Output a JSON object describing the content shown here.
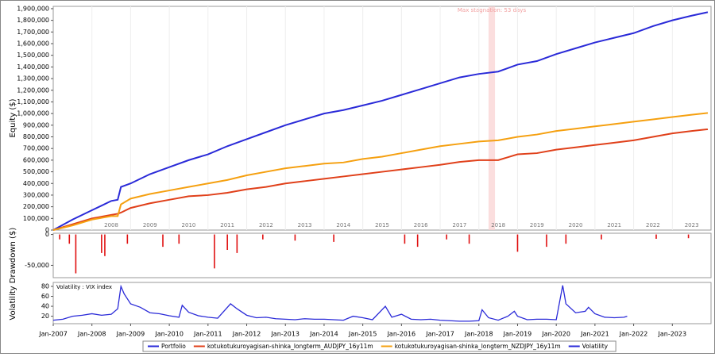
{
  "chart_data": [
    {
      "type": "line",
      "ylabel": "Equity ($)",
      "x": [
        "Jan-2007",
        "Jul-2007",
        "Jan-2008",
        "Jul-2008",
        "Sep-2008",
        "Oct-2008",
        "Jan-2009",
        "Jul-2009",
        "Jan-2010",
        "Jul-2010",
        "Jan-2011",
        "Jul-2011",
        "Jan-2012",
        "Jul-2012",
        "Jan-2013",
        "Jul-2013",
        "Jan-2014",
        "Jul-2014",
        "Jan-2015",
        "Jul-2015",
        "Jan-2016",
        "Jul-2016",
        "Jan-2017",
        "Jul-2017",
        "Jan-2018",
        "Jul-2018",
        "Jan-2019",
        "Jul-2019",
        "Jan-2020",
        "Jul-2020",
        "Jan-2021",
        "Jul-2021",
        "Jan-2022",
        "Jul-2022",
        "Jan-2023",
        "Jul-2023",
        "Dec-2023"
      ],
      "series": [
        {
          "name": "Portfolio",
          "color": "#2a2ad8",
          "values": [
            0,
            90000,
            170000,
            250000,
            260000,
            370000,
            400000,
            480000,
            540000,
            600000,
            650000,
            720000,
            780000,
            840000,
            900000,
            950000,
            1000000,
            1030000,
            1070000,
            1110000,
            1160000,
            1210000,
            1260000,
            1310000,
            1340000,
            1360000,
            1420000,
            1450000,
            1510000,
            1560000,
            1610000,
            1650000,
            1690000,
            1750000,
            1800000,
            1840000,
            1870000
          ]
        },
        {
          "name": "kotukotukuroyagisan-shinka_longterm_AUDJPY_16y11m",
          "color": "#e0401a",
          "values": [
            0,
            50000,
            100000,
            130000,
            140000,
            150000,
            190000,
            230000,
            260000,
            290000,
            300000,
            320000,
            350000,
            370000,
            400000,
            420000,
            440000,
            460000,
            480000,
            500000,
            520000,
            540000,
            560000,
            585000,
            600000,
            600000,
            650000,
            660000,
            690000,
            710000,
            730000,
            750000,
            770000,
            800000,
            830000,
            850000,
            865000
          ]
        },
        {
          "name": "kotukotukuroyagisan-shinka_longterm_NZDJPY_16y11m",
          "color": "#f5a010",
          "values": [
            0,
            40000,
            90000,
            120000,
            120000,
            220000,
            270000,
            310000,
            340000,
            370000,
            400000,
            430000,
            470000,
            500000,
            530000,
            550000,
            570000,
            580000,
            610000,
            630000,
            660000,
            690000,
            720000,
            740000,
            760000,
            770000,
            800000,
            820000,
            850000,
            870000,
            890000,
            910000,
            930000,
            950000,
            970000,
            990000,
            1005000
          ]
        }
      ],
      "xlim": [
        "Jan-2007",
        "Jan-2024"
      ],
      "ylim": [
        0,
        1920000
      ],
      "yticks": [
        0,
        {
          "value": 100000,
          "label": "100,000"
        },
        {
          "value": 200000,
          "label": "200,000"
        },
        {
          "value": 300000,
          "label": "300,000"
        },
        {
          "value": 400000,
          "label": "400,000"
        },
        {
          "value": 500000,
          "label": "500,000"
        },
        {
          "value": 600000,
          "label": "600,000"
        },
        {
          "value": 700000,
          "label": "700,000"
        },
        {
          "value": 800000,
          "label": "800,000"
        },
        {
          "value": 900000,
          "label": "900,000"
        },
        {
          "value": 1000000,
          "label": "1,000,000"
        },
        {
          "value": 1100000,
          "label": "1,100,000"
        },
        {
          "value": 1200000,
          "label": "1,200,000"
        },
        {
          "value": 1300000,
          "label": "1,300,000"
        },
        {
          "value": 1400000,
          "label": "1,400,000"
        },
        {
          "value": 1500000,
          "label": "1,500,000"
        },
        {
          "value": 1600000,
          "label": "1,600,000"
        },
        {
          "value": 1700000,
          "label": "1,700,000"
        },
        {
          "value": 1800000,
          "label": "1,800,000"
        },
        {
          "value": 1900000,
          "label": "1,900,000"
        }
      ],
      "year_labels": [
        "2008",
        "2009",
        "2010",
        "2011",
        "2012",
        "2013",
        "2014",
        "2015",
        "2016",
        "2017",
        "2018",
        "2019",
        "2020",
        "2021",
        "2022",
        "2023"
      ],
      "stagnation": {
        "label": "Max stagnation: 53 days",
        "start": "Apr-2018",
        "end": "Jun-2018"
      }
    },
    {
      "type": "bar",
      "ylabel": "Drawdown ($)",
      "color": "#e01010",
      "x": [
        "Mar-2007",
        "Jun-2007",
        "Aug-2007",
        "Apr-2008",
        "May-2008",
        "Dec-2008",
        "Nov-2009",
        "Apr-2010",
        "Mar-2011",
        "Jul-2011",
        "Oct-2011",
        "Jun-2012",
        "Apr-2013",
        "Apr-2014",
        "Feb-2016",
        "Jun-2016",
        "Mar-2017",
        "Oct-2017",
        "Jan-2019",
        "Oct-2019",
        "Apr-2020",
        "Mar-2021",
        "Aug-2022",
        "Jun-2023"
      ],
      "values": [
        -8000,
        -15000,
        -63000,
        -30000,
        -35000,
        -15000,
        -20000,
        -15000,
        -55000,
        -25000,
        -30000,
        -8000,
        -10000,
        -12000,
        -15000,
        -20000,
        -8000,
        -15000,
        -28000,
        -20000,
        -15000,
        -8000,
        -7000,
        -6000
      ],
      "ylim": [
        -70000,
        2000
      ],
      "yticks": [
        {
          "value": -50000,
          "label": "-50,000"
        },
        0
      ]
    },
    {
      "type": "line",
      "ylabel": "Volatility",
      "title": "Volatility : VIX index",
      "x": [
        "Jan-2007",
        "Apr-2007",
        "Jul-2007",
        "Oct-2007",
        "Jan-2008",
        "Apr-2008",
        "Jul-2008",
        "Sep-2008",
        "Oct-2008",
        "Nov-2008",
        "Dec-2008",
        "Jan-2009",
        "Apr-2009",
        "Jul-2009",
        "Oct-2009",
        "Jan-2010",
        "Apr-2010",
        "May-2010",
        "Jul-2010",
        "Oct-2010",
        "Jan-2011",
        "Apr-2011",
        "Aug-2011",
        "Oct-2011",
        "Jan-2012",
        "Apr-2012",
        "Jul-2012",
        "Oct-2012",
        "Jan-2013",
        "Apr-2013",
        "Jul-2013",
        "Oct-2013",
        "Jan-2014",
        "Apr-2014",
        "Jul-2014",
        "Oct-2014",
        "Jan-2015",
        "Apr-2015",
        "Aug-2015",
        "Oct-2015",
        "Jan-2016",
        "Apr-2016",
        "Jul-2016",
        "Oct-2016",
        "Jan-2017",
        "Apr-2017",
        "Jul-2017",
        "Oct-2017",
        "Jan-2018",
        "Feb-2018",
        "Apr-2018",
        "Jul-2018",
        "Oct-2018",
        "Dec-2018",
        "Jan-2019",
        "Apr-2019",
        "Jul-2019",
        "Oct-2019",
        "Jan-2020",
        "Mar-2020",
        "Apr-2020",
        "Jul-2020",
        "Oct-2020",
        "Nov-2020",
        "Jan-2021",
        "Apr-2021",
        "Jul-2021",
        "Oct-2021",
        "Nov-2021"
      ],
      "series": [
        {
          "name": "Volatility",
          "color": "#2a2ad8",
          "values": [
            12,
            14,
            20,
            22,
            25,
            22,
            24,
            35,
            80,
            65,
            55,
            45,
            38,
            27,
            25,
            21,
            18,
            42,
            28,
            21,
            18,
            16,
            45,
            35,
            22,
            17,
            18,
            15,
            14,
            13,
            15,
            14,
            14,
            13,
            12,
            20,
            17,
            13,
            40,
            18,
            24,
            14,
            13,
            14,
            12,
            11,
            10,
            10,
            11,
            33,
            17,
            12,
            20,
            30,
            20,
            13,
            14,
            14,
            13,
            82,
            45,
            27,
            30,
            38,
            25,
            18,
            17,
            18,
            20
          ]
        }
      ],
      "xlim": [
        "Jan-2007",
        "Jan-2024"
      ],
      "ylim": [
        5,
        88
      ],
      "yticks": [
        20,
        40,
        60,
        80
      ],
      "xticks": [
        "Jan-2007",
        "Jan-2008",
        "Jan-2009",
        "Jan-2010",
        "Jan-2011",
        "Jan-2012",
        "Jan-2013",
        "Jan-2014",
        "Jan-2015",
        "Jan-2016",
        "Jan-2017",
        "Jan-2018",
        "Jan-2019",
        "Jan-2020",
        "Jan-2021",
        "Jan-2022",
        "Jan-2023"
      ]
    }
  ]
}
